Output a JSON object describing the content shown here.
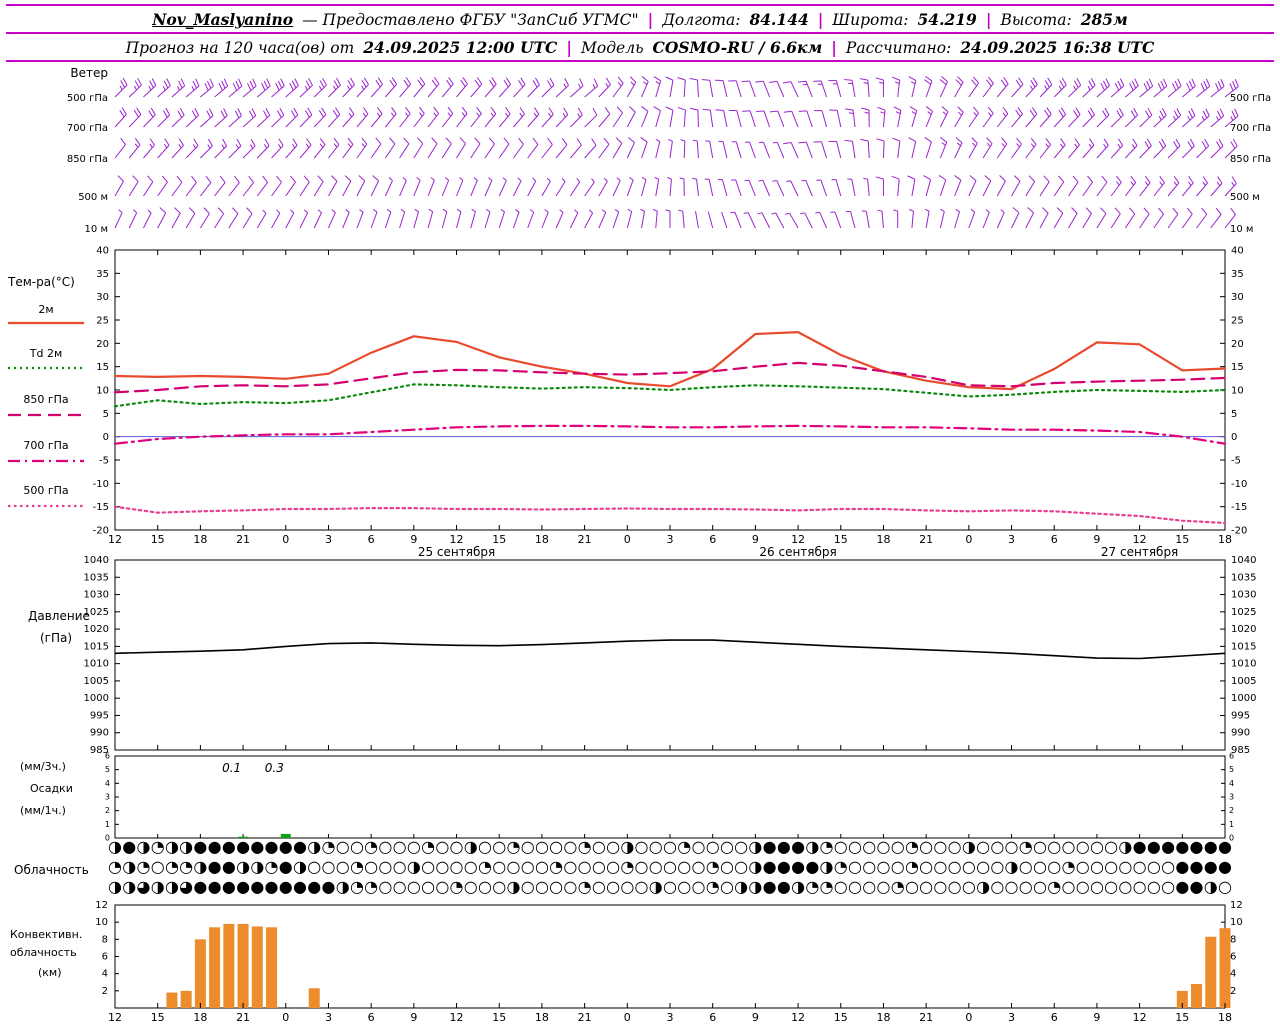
{
  "header": {
    "station": "Nov_Maslyanino",
    "provider": "— Предоставлено ФГБУ \"ЗапСиб УГМС\"",
    "sep": "|",
    "lon_label": "Долгота:",
    "lon": "84.144",
    "lat_label": "Широта:",
    "lat": "54.219",
    "alt_label": "Высота:",
    "alt": "285м",
    "forecast_label": "Прогноз на 120 часа(ов) от",
    "forecast_start": "24.09.2025 12:00 UTC",
    "model_label": "Модель",
    "model": "COSMO-RU / 6.6км",
    "calc_label": "Рассчитано:",
    "calc_time": "24.09.2025 16:38 UTC"
  },
  "time_axis": {
    "hours_total": 78,
    "step_hours": 3,
    "start": "24.09.2025 12:00 UTC",
    "tick_labels": [
      "12",
      "15",
      "18",
      "21",
      "0",
      "3",
      "6",
      "9",
      "12",
      "15",
      "18",
      "21",
      "0",
      "3",
      "6",
      "9",
      "12",
      "15",
      "18",
      "21",
      "0",
      "3",
      "6",
      "9",
      "12",
      "15",
      "18"
    ],
    "dates": [
      {
        "label": "25 сентября",
        "center_hour": 24
      },
      {
        "label": "26 сентября",
        "center_hour": 48
      },
      {
        "label": "27 сентября",
        "center_hour": 72
      }
    ]
  },
  "chart_data": [
    {
      "id": "wind",
      "type": "wind-barbs",
      "label": "Ветер",
      "color": "#9a23cc",
      "levels": [
        {
          "name": "500 гПа",
          "dirs": [
            45,
            48,
            50,
            50,
            48,
            45,
            42,
            40,
            40,
            42,
            45,
            50,
            30,
            10,
            350,
            340,
            335,
            345,
            0,
            20,
            35,
            42,
            45,
            48,
            50,
            50,
            52
          ],
          "spds": [
            25,
            25,
            28,
            30,
            28,
            25,
            22,
            20,
            20,
            18,
            18,
            15,
            15,
            12,
            10,
            10,
            12,
            15,
            15,
            18,
            20,
            22,
            25,
            28,
            30,
            30,
            32
          ]
        },
        {
          "name": "700 гПа",
          "dirs": [
            42,
            45,
            48,
            48,
            45,
            42,
            40,
            38,
            38,
            40,
            42,
            46,
            28,
            10,
            352,
            342,
            338,
            348,
            5,
            22,
            35,
            40,
            42,
            45,
            46,
            48,
            50
          ],
          "spds": [
            18,
            18,
            20,
            22,
            20,
            18,
            16,
            15,
            15,
            14,
            14,
            12,
            12,
            10,
            10,
            8,
            10,
            12,
            14,
            15,
            16,
            18,
            20,
            22,
            22,
            24,
            25
          ]
        },
        {
          "name": "850 гПа",
          "dirs": [
            38,
            42,
            45,
            45,
            42,
            38,
            35,
            32,
            32,
            35,
            38,
            42,
            25,
            8,
            350,
            340,
            336,
            346,
            2,
            18,
            30,
            36,
            40,
            42,
            44,
            45,
            46
          ],
          "spds": [
            12,
            14,
            15,
            16,
            15,
            14,
            12,
            10,
            10,
            10,
            9,
            8,
            8,
            7,
            6,
            6,
            8,
            10,
            12,
            12,
            14,
            15,
            16,
            16,
            18,
            18,
            20
          ]
        },
        {
          "name": "500 м",
          "dirs": [
            30,
            35,
            38,
            38,
            35,
            30,
            26,
            22,
            22,
            25,
            30,
            35,
            20,
            5,
            348,
            338,
            334,
            344,
            0,
            15,
            25,
            30,
            34,
            36,
            38,
            40,
            42
          ],
          "spds": [
            10,
            10,
            12,
            12,
            10,
            8,
            8,
            6,
            6,
            6,
            5,
            5,
            5,
            4,
            4,
            4,
            5,
            6,
            8,
            8,
            10,
            10,
            12,
            12,
            14,
            14,
            15
          ]
        },
        {
          "name": "10 м",
          "dirs": [
            25,
            28,
            32,
            32,
            28,
            24,
            20,
            16,
            15,
            18,
            22,
            28,
            15,
            0,
            345,
            335,
            330,
            340,
            355,
            10,
            20,
            26,
            30,
            32,
            34,
            36,
            38
          ],
          "spds": [
            6,
            8,
            8,
            8,
            6,
            5,
            4,
            4,
            3,
            4,
            4,
            3,
            3,
            3,
            2,
            3,
            3,
            4,
            5,
            6,
            6,
            8,
            8,
            8,
            10,
            10,
            10
          ]
        }
      ]
    },
    {
      "id": "temperature",
      "type": "line",
      "title": "Тем-ра(°C)",
      "ylim": [
        -20,
        40
      ],
      "ytick_step": 5,
      "zero_line_color": "#5b5bd6",
      "series": [
        {
          "name": "2м",
          "color": "#e84a2e",
          "style": "solid",
          "values": [
            13.0,
            12.8,
            13.0,
            12.8,
            12.4,
            13.5,
            18.0,
            21.5,
            20.3,
            17.0,
            15.0,
            13.5,
            11.5,
            10.8,
            14.5,
            22.0,
            22.4,
            17.5,
            14.0,
            12.0,
            10.6,
            10.2,
            14.5,
            20.2,
            19.8,
            14.2,
            14.6
          ]
        },
        {
          "name": "Td 2м",
          "color": "#0b8a0b",
          "style": "dotted",
          "values": [
            6.5,
            7.8,
            7.0,
            7.4,
            7.2,
            7.8,
            9.5,
            11.2,
            11.0,
            10.6,
            10.3,
            10.6,
            10.4,
            10.0,
            10.6,
            11.0,
            10.8,
            10.5,
            10.2,
            9.4,
            8.6,
            9.0,
            9.6,
            10.0,
            9.8,
            9.6,
            10.0
          ]
        },
        {
          "name": "850 гПа",
          "color": "#d4006e",
          "style": "dashed",
          "values": [
            9.5,
            10.0,
            10.8,
            11.0,
            10.8,
            11.2,
            12.5,
            13.8,
            14.3,
            14.2,
            13.8,
            13.5,
            13.3,
            13.6,
            14.0,
            15.0,
            15.8,
            15.2,
            14.0,
            12.8,
            11.0,
            10.8,
            11.5,
            11.8,
            12.0,
            12.2,
            12.6
          ]
        },
        {
          "name": "700 гПа",
          "color": "#e0007a",
          "style": "dashdot",
          "values": [
            -1.5,
            -0.5,
            0.0,
            0.3,
            0.5,
            0.5,
            1.0,
            1.5,
            2.0,
            2.2,
            2.3,
            2.3,
            2.2,
            2.0,
            2.0,
            2.2,
            2.3,
            2.2,
            2.0,
            2.0,
            1.8,
            1.5,
            1.5,
            1.3,
            1.0,
            0.0,
            -1.5
          ]
        },
        {
          "name": "500 гПа",
          "color": "#e84090",
          "style": "dense-dot",
          "values": [
            -15.0,
            -16.3,
            -16.0,
            -15.8,
            -15.5,
            -15.5,
            -15.3,
            -15.3,
            -15.5,
            -15.5,
            -15.6,
            -15.5,
            -15.4,
            -15.5,
            -15.5,
            -15.6,
            -15.8,
            -15.5,
            -15.5,
            -15.8,
            -16.0,
            -15.8,
            -16.0,
            -16.5,
            -17.0,
            -18.0,
            -18.5
          ]
        }
      ]
    },
    {
      "id": "pressure",
      "type": "line",
      "title": "Давление",
      "title2": "(гПа)",
      "ylim": [
        985,
        1040
      ],
      "ytick_step": 5,
      "color": "#000000",
      "values": [
        1013.0,
        1013.3,
        1013.6,
        1014.0,
        1015.0,
        1015.8,
        1016.0,
        1015.6,
        1015.3,
        1015.2,
        1015.5,
        1016.0,
        1016.5,
        1016.8,
        1016.8,
        1016.2,
        1015.6,
        1015.0,
        1014.5,
        1014.0,
        1013.5,
        1013.0,
        1012.3,
        1011.6,
        1011.5,
        1012.2,
        1013.0
      ]
    },
    {
      "id": "precip",
      "type": "bar",
      "titles": [
        "(мм/3ч.)",
        "Осадки",
        "(мм/1ч.)"
      ],
      "ylim": [
        0,
        6
      ],
      "ytick_step": 1,
      "color": "#12a018",
      "bars": [
        {
          "h": 9,
          "v": 0.1
        },
        {
          "h": 12,
          "v": 0.3
        }
      ],
      "annotations": [
        {
          "h": 9,
          "text": "0.1"
        },
        {
          "h": 12,
          "text": "0.3"
        }
      ]
    },
    {
      "id": "cloud",
      "type": "symbols",
      "title": "Облачность",
      "glyphs": {
        "0": "○",
        "1": "◔",
        "2": "◑",
        "3": "◕",
        "4": "●"
      },
      "rows": [
        "2421224444444421001000100200100001002000100002444210000010002000100000024444444",
        "1210112442214200010002000010000100001000001002444421000010000002000100000004444",
        "2232234444444444211000001000200001000020001022442110000100000200001000000004420"
      ]
    },
    {
      "id": "convective",
      "type": "bar",
      "titles": [
        "Конвективн.",
        "облачность",
        "(км)"
      ],
      "ylim": [
        0,
        12
      ],
      "ytick_step": 2,
      "color": "#ec8c2c",
      "bars": [
        {
          "h": 4,
          "km": 1.8
        },
        {
          "h": 5,
          "km": 2.0
        },
        {
          "h": 6,
          "km": 8.0
        },
        {
          "h": 7,
          "km": 9.4
        },
        {
          "h": 8,
          "km": 9.8
        },
        {
          "h": 9,
          "km": 9.8
        },
        {
          "h": 10,
          "km": 9.5
        },
        {
          "h": 11,
          "km": 9.4
        },
        {
          "h": 14,
          "km": 2.3
        },
        {
          "h": 75,
          "km": 2.0
        },
        {
          "h": 76,
          "km": 2.8
        },
        {
          "h": 77,
          "km": 8.3
        },
        {
          "h": 78,
          "km": 9.3
        }
      ]
    }
  ]
}
